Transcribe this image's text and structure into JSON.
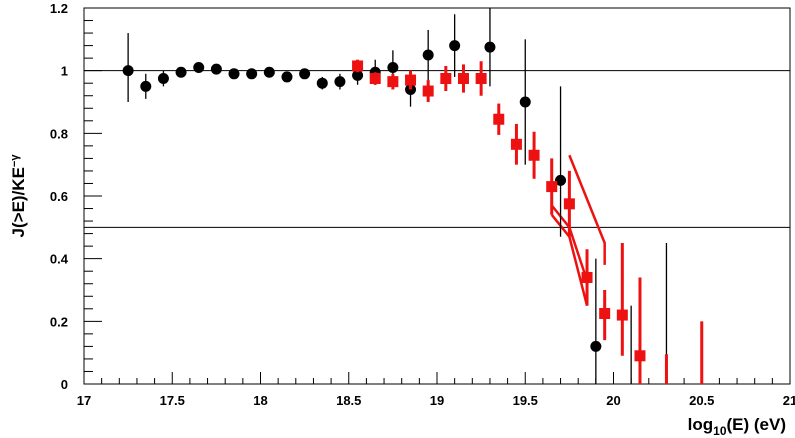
{
  "chart_data": {
    "type": "scatter",
    "title": "",
    "xlabel": {
      "main": "log",
      "sub": "10",
      "rest": "(E) (eV)"
    },
    "ylabel": {
      "main": "J(>E)/KE",
      "sup": "−γ"
    },
    "xlim": [
      17,
      21
    ],
    "ylim": [
      0,
      1.2
    ],
    "x_ticks": [
      "17",
      "17.5",
      "18",
      "18.5",
      "19",
      "19.5",
      "20",
      "20.5",
      "21"
    ],
    "y_ticks": [
      "0",
      "0.2",
      "0.4",
      "0.6",
      "0.8",
      "1",
      "1.2"
    ],
    "reference_lines": [
      1.0,
      0.5
    ],
    "grid": false,
    "legend": "none",
    "colors": {
      "series_black": "#000000",
      "series_red": "#ee1111"
    },
    "series": [
      {
        "marker": "circle",
        "color": "#000000",
        "points": [
          {
            "x": 17.25,
            "y": 1.0,
            "lo": 0.9,
            "hi": 1.12
          },
          {
            "x": 17.35,
            "y": 0.95,
            "lo": 0.91,
            "hi": 0.99
          },
          {
            "x": 17.45,
            "y": 0.975,
            "lo": 0.95,
            "hi": 1.0
          },
          {
            "x": 17.55,
            "y": 0.995,
            "lo": 0.98,
            "hi": 1.01
          },
          {
            "x": 17.65,
            "y": 1.01,
            "lo": 1.0,
            "hi": 1.02
          },
          {
            "x": 17.75,
            "y": 1.005,
            "lo": 0.995,
            "hi": 1.015
          },
          {
            "x": 17.85,
            "y": 0.99,
            "lo": 0.98,
            "hi": 1.0
          },
          {
            "x": 17.95,
            "y": 0.99,
            "lo": 0.98,
            "hi": 1.0
          },
          {
            "x": 18.05,
            "y": 0.995,
            "lo": 0.985,
            "hi": 1.005
          },
          {
            "x": 18.15,
            "y": 0.98,
            "lo": 0.965,
            "hi": 0.995
          },
          {
            "x": 18.25,
            "y": 0.99,
            "lo": 0.975,
            "hi": 1.005
          },
          {
            "x": 18.35,
            "y": 0.96,
            "lo": 0.94,
            "hi": 0.98
          },
          {
            "x": 18.45,
            "y": 0.965,
            "lo": 0.94,
            "hi": 0.99
          },
          {
            "x": 18.55,
            "y": 0.985,
            "lo": 0.955,
            "hi": 1.015
          },
          {
            "x": 18.65,
            "y": 0.995,
            "lo": 0.955,
            "hi": 1.035
          },
          {
            "x": 18.75,
            "y": 1.01,
            "lo": 0.96,
            "hi": 1.065
          },
          {
            "x": 18.85,
            "y": 0.94,
            "lo": 0.885,
            "hi": 0.995
          },
          {
            "x": 18.95,
            "y": 1.05,
            "lo": 0.97,
            "hi": 1.13
          },
          {
            "x": 19.1,
            "y": 1.08,
            "lo": 0.98,
            "hi": 1.18
          },
          {
            "x": 19.3,
            "y": 1.075,
            "lo": 0.95,
            "hi": 1.2
          },
          {
            "x": 19.5,
            "y": 0.9,
            "lo": 0.7,
            "hi": 1.1
          },
          {
            "x": 19.7,
            "y": 0.65,
            "lo": 0.47,
            "hi": 0.95
          },
          {
            "x": 19.9,
            "y": 0.12,
            "lo": 0.0,
            "hi": 0.4
          }
        ],
        "upper_limits": [
          {
            "x": 20.1,
            "lo": 0.0,
            "hi": 0.25
          },
          {
            "x": 20.3,
            "lo": 0.0,
            "hi": 0.45
          }
        ]
      },
      {
        "marker": "square",
        "color": "#ee1111",
        "points": [
          {
            "x": 18.55,
            "y": 1.015,
            "lo": 0.995,
            "hi": 1.035
          },
          {
            "x": 18.65,
            "y": 0.975,
            "lo": 0.955,
            "hi": 0.995
          },
          {
            "x": 18.75,
            "y": 0.965,
            "lo": 0.94,
            "hi": 0.99
          },
          {
            "x": 18.85,
            "y": 0.97,
            "lo": 0.94,
            "hi": 1.0
          },
          {
            "x": 18.95,
            "y": 0.935,
            "lo": 0.9,
            "hi": 0.97
          },
          {
            "x": 19.05,
            "y": 0.975,
            "lo": 0.935,
            "hi": 1.015
          },
          {
            "x": 19.15,
            "y": 0.975,
            "lo": 0.93,
            "hi": 1.02
          },
          {
            "x": 19.25,
            "y": 0.975,
            "lo": 0.92,
            "hi": 1.03
          },
          {
            "x": 19.35,
            "y": 0.845,
            "lo": 0.795,
            "hi": 0.895
          },
          {
            "x": 19.45,
            "y": 0.765,
            "lo": 0.7,
            "hi": 0.83
          },
          {
            "x": 19.55,
            "y": 0.73,
            "lo": 0.655,
            "hi": 0.805
          },
          {
            "x": 19.65,
            "y": 0.63,
            "lo": 0.54,
            "hi": 0.72
          },
          {
            "x": 19.75,
            "y": 0.575,
            "lo": 0.47,
            "hi": 0.68
          },
          {
            "x": 19.85,
            "y": 0.34,
            "lo": 0.25,
            "hi": 0.43
          },
          {
            "x": 19.95,
            "y": 0.225,
            "lo": 0.14,
            "hi": 0.3
          },
          {
            "x": 20.05,
            "y": 0.22,
            "lo": 0.09,
            "hi": 0.45
          },
          {
            "x": 20.15,
            "y": 0.09,
            "lo": 0.0,
            "hi": 0.34
          }
        ],
        "upper_limits": [
          {
            "x": 20.3,
            "lo": 0.0,
            "hi": 0.095
          },
          {
            "x": 20.5,
            "lo": 0.0,
            "hi": 0.2
          }
        ],
        "bands": [
          [
            [
              19.65,
              0.54
            ],
            [
              19.75,
              0.47
            ],
            [
              19.85,
              0.25
            ]
          ],
          [
            [
              19.65,
              0.57
            ],
            [
              19.75,
              0.5
            ],
            [
              19.85,
              0.33
            ]
          ],
          [
            [
              19.75,
              0.73
            ],
            [
              19.95,
              0.45
            ],
            [
              19.95,
              0.38
            ]
          ]
        ]
      }
    ]
  }
}
